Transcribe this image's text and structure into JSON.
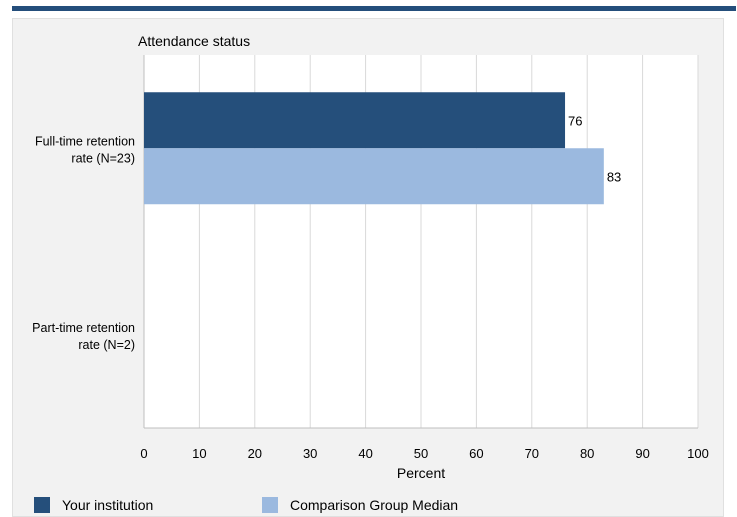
{
  "chart_data": {
    "type": "bar",
    "orientation": "horizontal",
    "title": "Attendance status",
    "xlabel": "Percent",
    "ylabel": "",
    "xlim": [
      0,
      100
    ],
    "x_ticks": [
      0,
      10,
      20,
      30,
      40,
      50,
      60,
      70,
      80,
      90,
      100
    ],
    "categories": [
      {
        "label_line1": "Full-time retention",
        "label_line2": "rate (N=23)"
      },
      {
        "label_line1": "Part-time retention",
        "label_line2": "rate (N=2)"
      }
    ],
    "series": [
      {
        "name": "Your institution",
        "color": "#254f7b",
        "values": [
          76,
          null
        ]
      },
      {
        "name": "Comparison Group Median",
        "color": "#9bb9df",
        "values": [
          83,
          null
        ]
      }
    ],
    "grid": true,
    "legend_placement": "bottom"
  }
}
